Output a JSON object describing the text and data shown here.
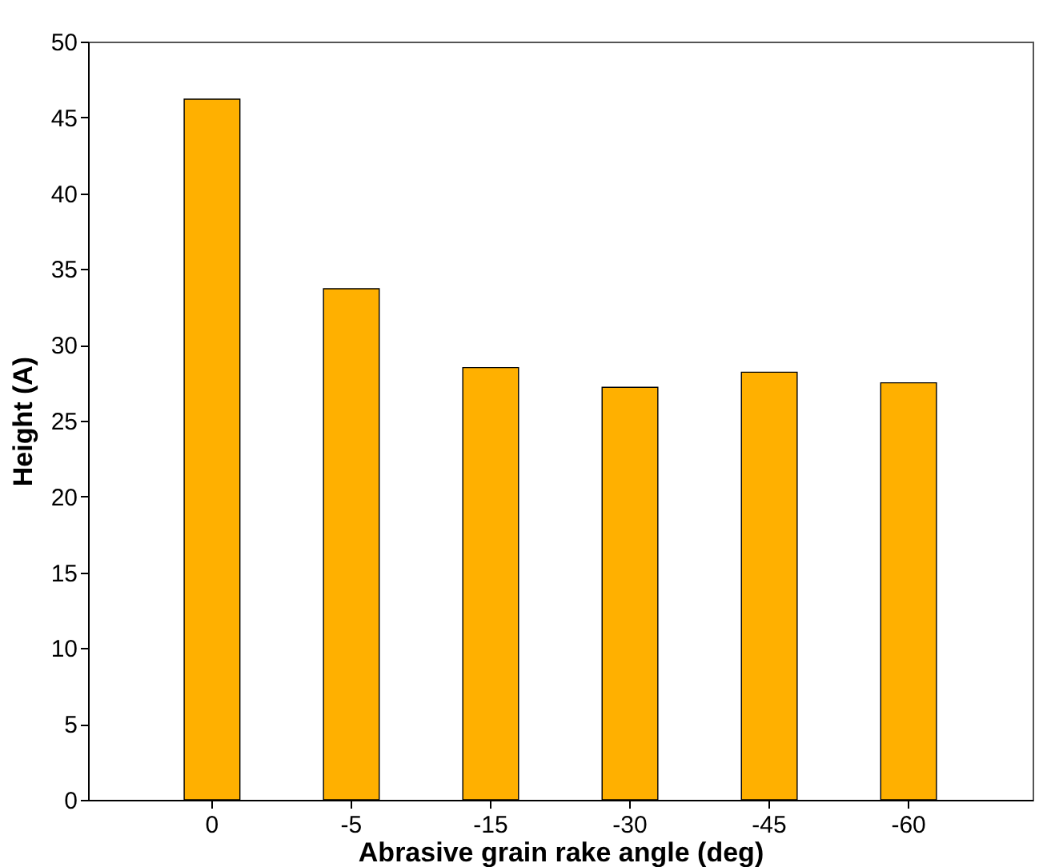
{
  "chart_data": {
    "type": "bar",
    "xlabel": "Abrasive grain rake angle (deg)",
    "ylabel": "Height (A)",
    "categories": [
      "0",
      "-5",
      "-15",
      "-30",
      "-45",
      "-60"
    ],
    "values": [
      46.2,
      33.7,
      28.5,
      27.2,
      28.2,
      27.5
    ],
    "color": "#ffb000",
    "ylim": [
      0,
      50
    ],
    "yticks": [
      0,
      5,
      10,
      15,
      20,
      25,
      30,
      35,
      40,
      45,
      50
    ],
    "grid": false
  }
}
